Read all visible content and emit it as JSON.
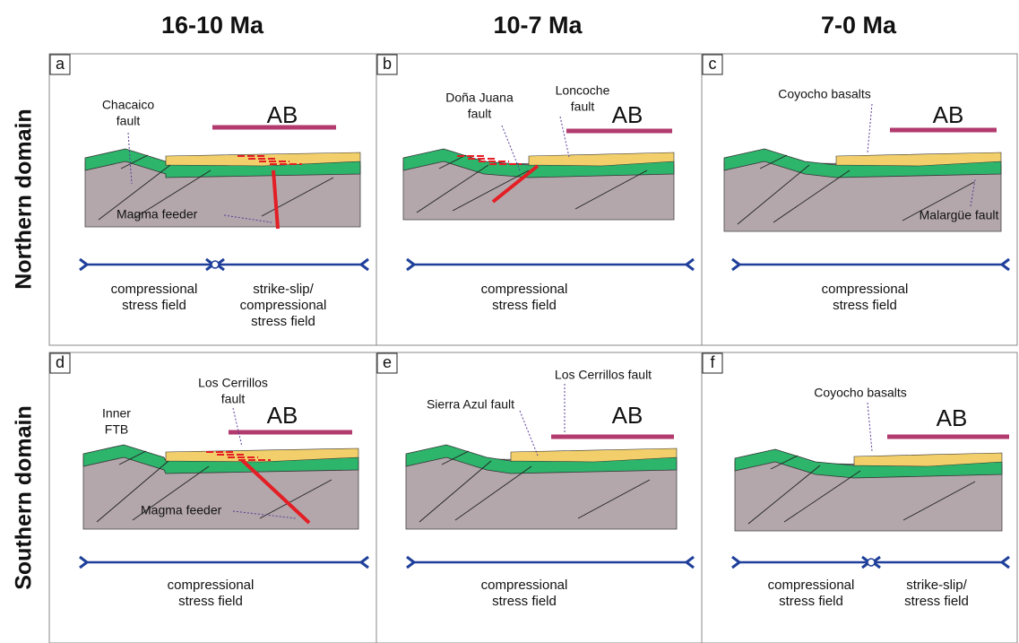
{
  "columns": [
    "16-10 Ma",
    "10-7 Ma",
    "7-0 Ma"
  ],
  "rows": [
    "Northern domain",
    "Southern domain"
  ],
  "panels": [
    {
      "letter": "a",
      "ab": "AB",
      "annotations": [
        [
          "Chacaico",
          "fault"
        ],
        [
          "Magma feeder"
        ]
      ],
      "stress": [
        [
          "compressional",
          "stress field"
        ],
        [
          "strike-slip/",
          "compressional",
          "stress field"
        ]
      ]
    },
    {
      "letter": "b",
      "ab": "AB",
      "annotations": [
        [
          "Doña Juana",
          "fault"
        ],
        [
          "Loncoche",
          "fault"
        ]
      ],
      "stress": [
        [
          "compressional",
          "stress field"
        ]
      ]
    },
    {
      "letter": "c",
      "ab": "AB",
      "annotations": [
        [
          "Coyocho basalts"
        ],
        [
          "Malargüe fault"
        ]
      ],
      "stress": [
        [
          "compressional",
          "stress field"
        ]
      ]
    },
    {
      "letter": "d",
      "ab": "AB",
      "annotations": [
        [
          "Inner",
          "FTB"
        ],
        [
          "Los Cerrillos",
          "fault"
        ],
        [
          "Magma feeder"
        ]
      ],
      "stress": [
        [
          "compressional",
          "stress field"
        ]
      ]
    },
    {
      "letter": "e",
      "ab": "AB",
      "annotations": [
        [
          "Sierra Azul fault"
        ],
        [
          "Los Cerrillos fault"
        ]
      ],
      "stress": [
        [
          "compressional",
          "stress field"
        ]
      ]
    },
    {
      "letter": "f",
      "ab": "AB",
      "annotations": [
        [
          "Coyocho basalts"
        ]
      ],
      "stress": [
        [
          "compressional",
          "stress field"
        ],
        [
          "strike-slip/",
          "stress field"
        ]
      ]
    }
  ]
}
